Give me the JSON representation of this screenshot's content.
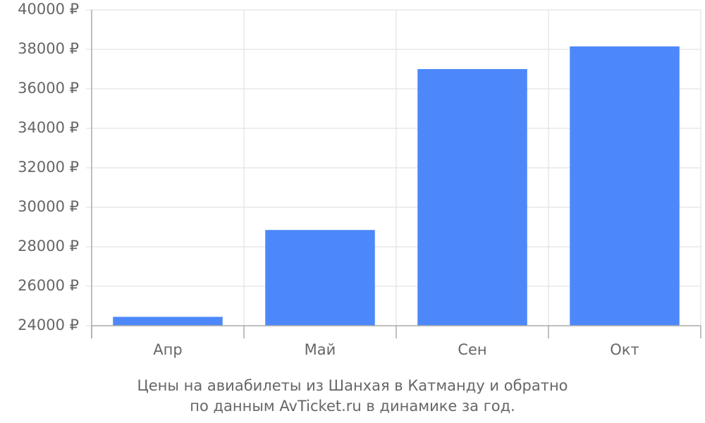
{
  "chart_data": {
    "type": "bar",
    "title": [
      "Цены на авиабилеты из Шанхая в Катманду и обратно",
      "по данным AvTicket.ru в динамике за год."
    ],
    "categories": [
      "Апр",
      "Май",
      "Сен",
      "Окт"
    ],
    "values": [
      24450,
      28850,
      37000,
      38150
    ],
    "color": "#4d88fb",
    "ylim": [
      24000,
      40000
    ],
    "yticks": [
      {
        "value": 24000,
        "label": "24000 ₽"
      },
      {
        "value": 26000,
        "label": "26000 ₽"
      },
      {
        "value": 28000,
        "label": "28000 ₽"
      },
      {
        "value": 30000,
        "label": "30000 ₽"
      },
      {
        "value": 32000,
        "label": "32000 ₽"
      },
      {
        "value": 34000,
        "label": "34000 ₽"
      },
      {
        "value": 36000,
        "label": "36000 ₽"
      },
      {
        "value": 38000,
        "label": "38000 ₽"
      },
      {
        "value": 40000,
        "label": "40000 ₽"
      }
    ],
    "grid": true
  }
}
